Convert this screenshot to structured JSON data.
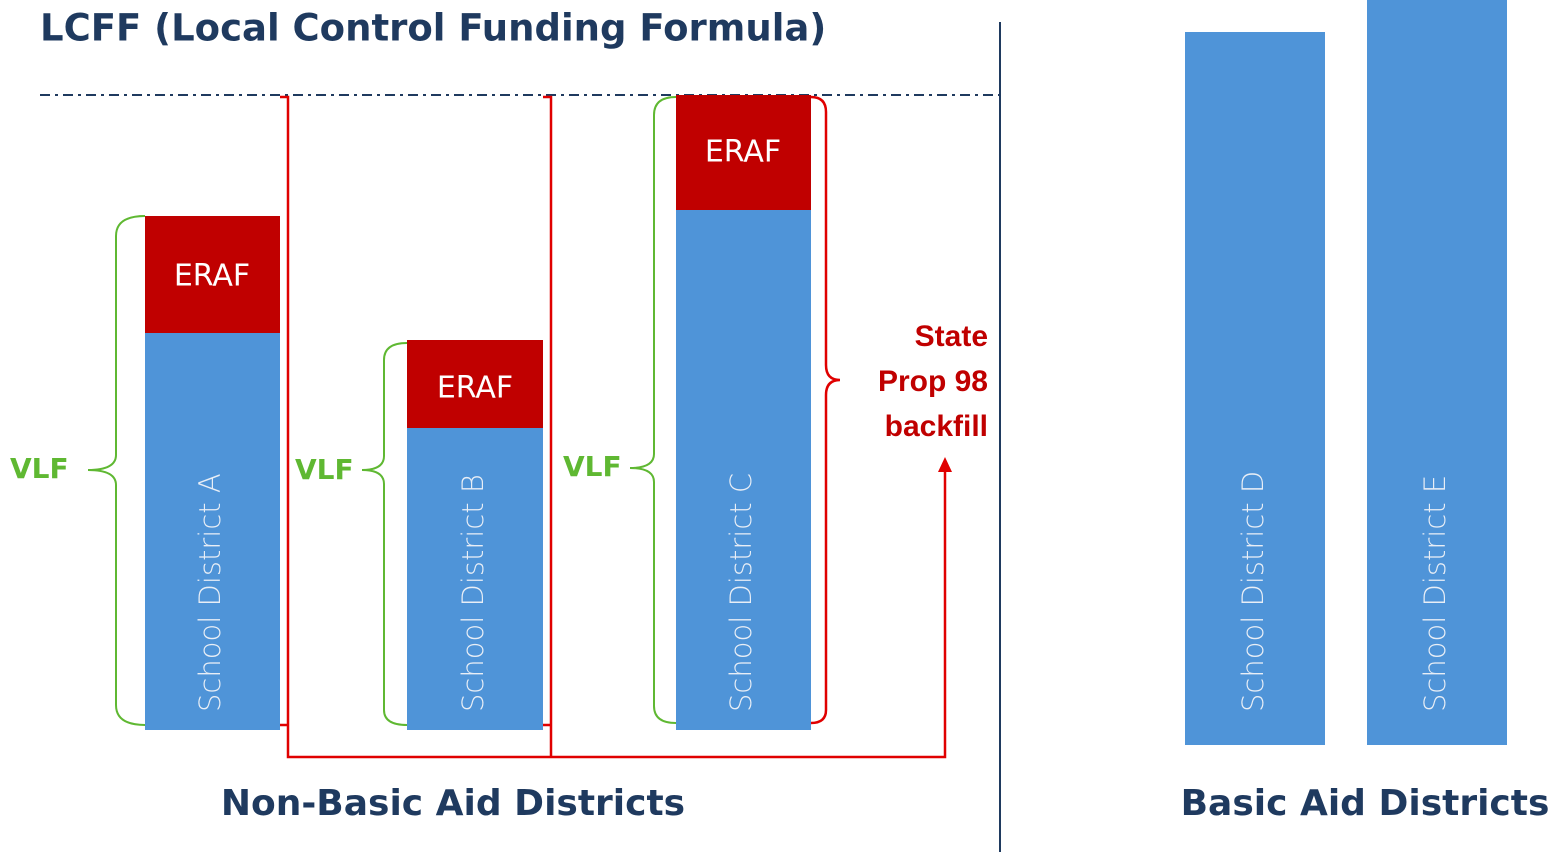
{
  "title": "LCFF (Local Control Funding Formula)",
  "districts": [
    {
      "name": "School District A",
      "eraf": "ERAF",
      "vlf": "VLF"
    },
    {
      "name": "School District B",
      "eraf": "ERAF",
      "vlf": "VLF"
    },
    {
      "name": "School District C",
      "eraf": "ERAF",
      "vlf": "VLF"
    },
    {
      "name": "School District D"
    },
    {
      "name": "School District E"
    }
  ],
  "backfill": [
    "State",
    "Prop 98",
    "backfill"
  ],
  "groups": [
    "Non-Basic Aid Districts",
    "Basic Aid Districts"
  ]
}
